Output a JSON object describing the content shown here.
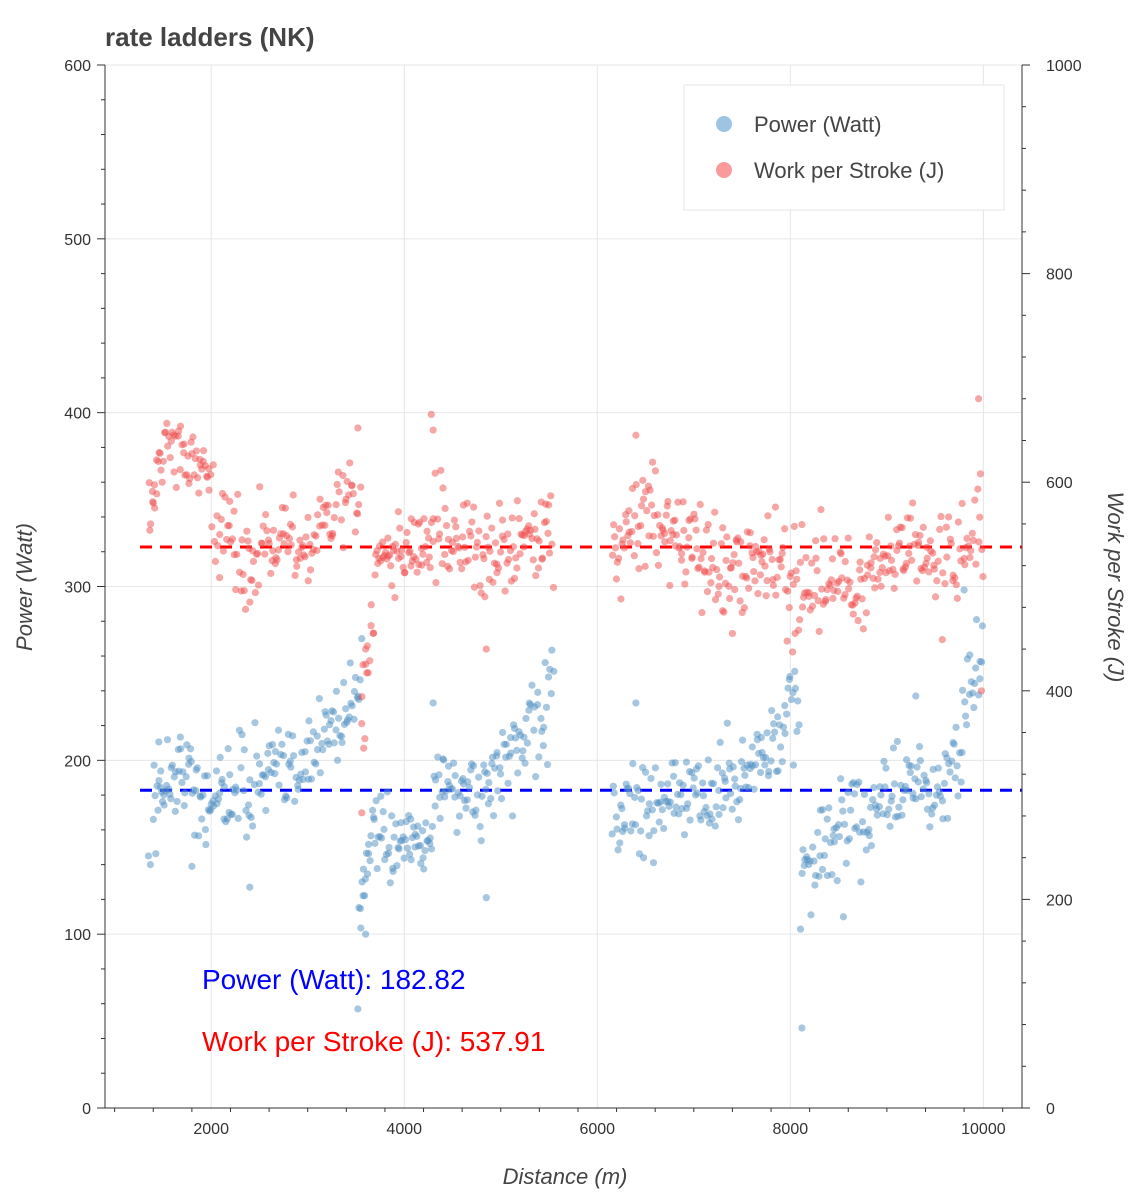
{
  "chart_data": {
    "type": "scatter",
    "title": "rate ladders (NK)",
    "xlabel": "Distance (m)",
    "ylabel": "Power (Watt)",
    "y2label": "Work per Stroke (J)",
    "xlim": [
      900,
      10400
    ],
    "ylim": [
      0,
      600
    ],
    "y2lim": [
      0,
      1000
    ],
    "xticks": [
      2000,
      4000,
      6000,
      8000,
      10000
    ],
    "yticks": [
      0,
      100,
      200,
      300,
      400,
      500,
      600
    ],
    "y2ticks": [
      0,
      200,
      400,
      600,
      800,
      1000
    ],
    "grid": true,
    "legend_position": "top-right",
    "series": [
      {
        "name": "Power (Watt)",
        "axis": "left",
        "color": "#4f8fc4",
        "segments": [
          {
            "x0": 1400,
            "x1": 1500,
            "y0": 170,
            "y1": 190,
            "n": 12,
            "spread": 14
          },
          {
            "x0": 1500,
            "x1": 1800,
            "y0": 190,
            "y1": 195,
            "n": 28,
            "spread": 12
          },
          {
            "x0": 1800,
            "x1": 2200,
            "y0": 175,
            "y1": 185,
            "n": 36,
            "spread": 15
          },
          {
            "x0": 2200,
            "x1": 2700,
            "y0": 185,
            "y1": 195,
            "n": 40,
            "spread": 15
          },
          {
            "x0": 2700,
            "x1": 3200,
            "y0": 185,
            "y1": 215,
            "n": 40,
            "spread": 13
          },
          {
            "x0": 3200,
            "x1": 3550,
            "y0": 215,
            "y1": 245,
            "n": 30,
            "spread": 14
          },
          {
            "x0": 3530,
            "x1": 3640,
            "y0": 105,
            "y1": 160,
            "n": 12,
            "spread": 10
          },
          {
            "x0": 3640,
            "x1": 4300,
            "y0": 155,
            "y1": 150,
            "n": 60,
            "spread": 10
          },
          {
            "x0": 4300,
            "x1": 4800,
            "y0": 195,
            "y1": 175,
            "n": 42,
            "spread": 12
          },
          {
            "x0": 4800,
            "x1": 5550,
            "y0": 185,
            "y1": 230,
            "n": 62,
            "spread": 14
          },
          {
            "x0": 6150,
            "x1": 6900,
            "y0": 170,
            "y1": 180,
            "n": 62,
            "spread": 13
          },
          {
            "x0": 6900,
            "x1": 7500,
            "y0": 175,
            "y1": 190,
            "n": 50,
            "spread": 14
          },
          {
            "x0": 7500,
            "x1": 8100,
            "y0": 190,
            "y1": 230,
            "n": 50,
            "spread": 15
          },
          {
            "x0": 8100,
            "x1": 8900,
            "y0": 135,
            "y1": 175,
            "n": 65,
            "spread": 14
          },
          {
            "x0": 8900,
            "x1": 9700,
            "y0": 180,
            "y1": 185,
            "n": 65,
            "spread": 14
          },
          {
            "x0": 9700,
            "x1": 10000,
            "y0": 200,
            "y1": 265,
            "n": 25,
            "spread": 14
          }
        ],
        "points": [
          {
            "x": 1350,
            "y": 145
          },
          {
            "x": 1370,
            "y": 140
          },
          {
            "x": 1800,
            "y": 139
          },
          {
            "x": 2400,
            "y": 127
          },
          {
            "x": 3520,
            "y": 57
          },
          {
            "x": 3560,
            "y": 270
          },
          {
            "x": 3600,
            "y": 100
          },
          {
            "x": 4300,
            "y": 233
          },
          {
            "x": 4850,
            "y": 121
          },
          {
            "x": 6400,
            "y": 233
          },
          {
            "x": 8120,
            "y": 46
          },
          {
            "x": 8550,
            "y": 110
          },
          {
            "x": 9800,
            "y": 298
          },
          {
            "x": 9300,
            "y": 237
          }
        ],
        "mean": 182.82
      },
      {
        "name": "Work per Stroke (J)",
        "axis": "right",
        "color": "#f04e4e",
        "segments": [
          {
            "x0": 1350,
            "x1": 1500,
            "y0": 570,
            "y1": 620,
            "n": 14,
            "spread": 15
          },
          {
            "x0": 1500,
            "x1": 2000,
            "y0": 640,
            "y1": 600,
            "n": 44,
            "spread": 14
          },
          {
            "x0": 2000,
            "x1": 2500,
            "y0": 560,
            "y1": 520,
            "n": 40,
            "spread": 22
          },
          {
            "x0": 2500,
            "x1": 3100,
            "y0": 550,
            "y1": 540,
            "n": 50,
            "spread": 18
          },
          {
            "x0": 3100,
            "x1": 3550,
            "y0": 560,
            "y1": 590,
            "n": 34,
            "spread": 16
          },
          {
            "x0": 3550,
            "x1": 3700,
            "y0": 380,
            "y1": 480,
            "n": 14,
            "spread": 25
          },
          {
            "x0": 3700,
            "x1": 4300,
            "y0": 530,
            "y1": 540,
            "n": 55,
            "spread": 16
          },
          {
            "x0": 4300,
            "x1": 4900,
            "y0": 560,
            "y1": 520,
            "n": 50,
            "spread": 22
          },
          {
            "x0": 4900,
            "x1": 5550,
            "y0": 530,
            "y1": 560,
            "n": 55,
            "spread": 20
          },
          {
            "x0": 6150,
            "x1": 6600,
            "y0": 520,
            "y1": 580,
            "n": 40,
            "spread": 22
          },
          {
            "x0": 6600,
            "x1": 7200,
            "y0": 560,
            "y1": 520,
            "n": 55,
            "spread": 20
          },
          {
            "x0": 7200,
            "x1": 7800,
            "y0": 520,
            "y1": 530,
            "n": 55,
            "spread": 25
          },
          {
            "x0": 7800,
            "x1": 8100,
            "y0": 520,
            "y1": 500,
            "n": 25,
            "spread": 30
          },
          {
            "x0": 8100,
            "x1": 8800,
            "y0": 510,
            "y1": 500,
            "n": 60,
            "spread": 22
          },
          {
            "x0": 8800,
            "x1": 9500,
            "y0": 520,
            "y1": 540,
            "n": 60,
            "spread": 20
          },
          {
            "x0": 9500,
            "x1": 10000,
            "y0": 500,
            "y1": 560,
            "n": 38,
            "spread": 30
          }
        ],
        "points": [
          {
            "x": 1400,
            "y": 580
          },
          {
            "x": 2400,
            "y": 485
          },
          {
            "x": 3520,
            "y": 652
          },
          {
            "x": 3600,
            "y": 440
          },
          {
            "x": 3580,
            "y": 345
          },
          {
            "x": 3560,
            "y": 283
          },
          {
            "x": 4280,
            "y": 665
          },
          {
            "x": 4300,
            "y": 650
          },
          {
            "x": 4850,
            "y": 440
          },
          {
            "x": 6400,
            "y": 645
          },
          {
            "x": 7400,
            "y": 455
          },
          {
            "x": 8050,
            "y": 455
          },
          {
            "x": 9950,
            "y": 680
          },
          {
            "x": 9980,
            "y": 400
          },
          {
            "x": 9970,
            "y": 608
          }
        ],
        "mean": 537.91
      }
    ],
    "annotations": [
      {
        "text": "Power (Watt): 182.82",
        "color": "#0000ff"
      },
      {
        "text": "Work per Stroke (J): 537.91",
        "color": "#ff0000"
      }
    ]
  }
}
